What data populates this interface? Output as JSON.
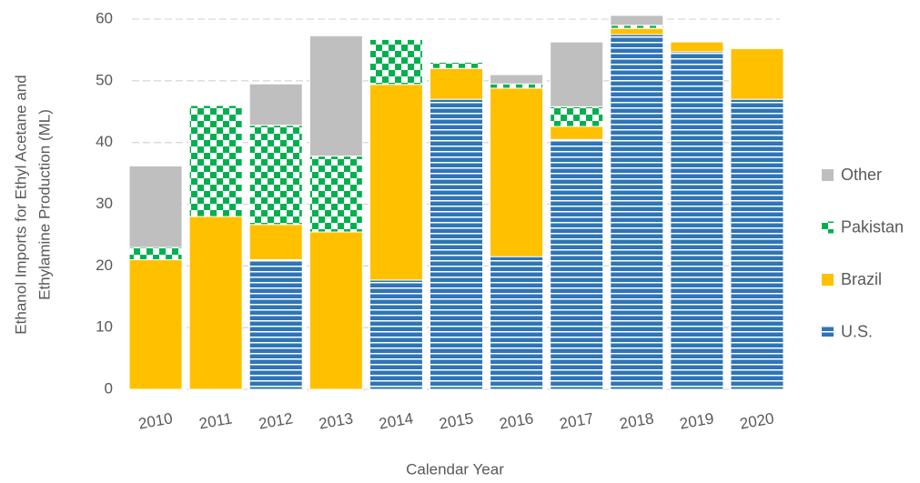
{
  "chart_data": {
    "type": "stacked-bar",
    "y_label": [
      "Ethanol Imports for Ethyl Acetane and",
      "Ethylamine Production (ML)"
    ],
    "x_label": "Calendar Year",
    "categories": [
      "2010",
      "2011",
      "2012",
      "2013",
      "2014",
      "2015",
      "2016",
      "2017",
      "2018",
      "2019",
      "2020"
    ],
    "series": [
      {
        "name": "U.S.",
        "color": "#2e75b6",
        "pattern": "horizontal-stripes",
        "values": [
          0,
          0,
          21,
          0,
          17.7,
          47,
          21.5,
          40.5,
          57.5,
          54.7,
          47
        ]
      },
      {
        "name": "Brazil",
        "color": "#ffc000",
        "values": [
          21,
          28,
          5.7,
          25.5,
          31.7,
          5,
          27.3,
          2.1,
          1,
          1.6,
          8.2
        ]
      },
      {
        "name": "Pakistan",
        "color": "#00b050",
        "pattern": "checkerboard",
        "values": [
          2,
          18,
          16.1,
          12.3,
          7.3,
          1,
          0.7,
          3.2,
          0.5,
          0,
          0
        ]
      },
      {
        "name": "Other",
        "color": "#bfbfbf",
        "values": [
          13.2,
          0,
          6.7,
          19.5,
          0,
          0,
          1.5,
          10.5,
          1.6,
          0,
          0
        ]
      }
    ],
    "ylim": [
      0,
      60
    ],
    "yticks": [
      0,
      10,
      20,
      30,
      40,
      50,
      60
    ],
    "grid": true,
    "legend": "right"
  }
}
